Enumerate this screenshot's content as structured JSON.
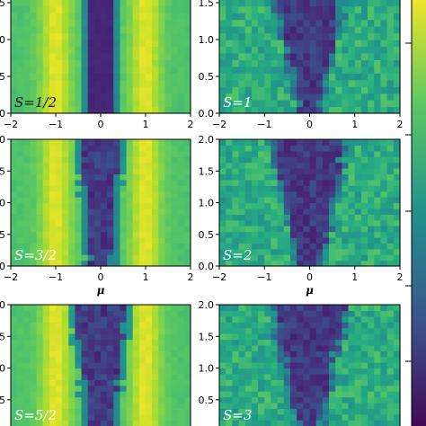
{
  "chart_data": {
    "type": "heatmap",
    "colormap": "viridis",
    "xlabel": "μ",
    "x_ticks": [
      "−2",
      "−1",
      "0",
      "1",
      "2"
    ],
    "y_ticks": [
      "0.0",
      "0.5",
      "1.0",
      "1.5",
      "2.0"
    ],
    "xlim": [
      -2,
      2
    ],
    "ylim": [
      0,
      2
    ],
    "panels": [
      {
        "label": "S = 1/2",
        "label_display": "S=1/2",
        "notch_half_width": 0.22,
        "notch_growth": 0.0,
        "jagged": 0.0,
        "background": "yellow-bands",
        "y_visible": [
          0,
          1.9
        ]
      },
      {
        "label": "S = 1",
        "label_display": "S=1",
        "notch_half_width": 0.18,
        "notch_growth": 0.35,
        "jagged": 0.15,
        "background": "green-textured",
        "y_visible": [
          0,
          1.9
        ]
      },
      {
        "label": "S = 3/2",
        "label_display": "S=3/2",
        "notch_half_width": 0.2,
        "notch_growth": 0.12,
        "jagged": 0.06,
        "background": "yellow-bands",
        "y_visible": [
          0,
          2.0
        ]
      },
      {
        "label": "S = 2",
        "label_display": "S=2",
        "notch_half_width": 0.2,
        "notch_growth": 0.3,
        "jagged": 0.15,
        "background": "green-textured",
        "y_visible": [
          0,
          2.0
        ]
      },
      {
        "label": "S = 5/2",
        "label_display": "S=5/2",
        "notch_half_width": 0.22,
        "notch_growth": 0.18,
        "jagged": 0.1,
        "background": "yellow-bands",
        "y_visible": [
          0.4,
          2.0
        ]
      },
      {
        "label": "S = 3",
        "label_display": "S=3",
        "notch_half_width": 0.2,
        "notch_growth": 0.3,
        "jagged": 0.15,
        "background": "green-textured",
        "y_visible": [
          0.4,
          2.0
        ]
      }
    ]
  }
}
